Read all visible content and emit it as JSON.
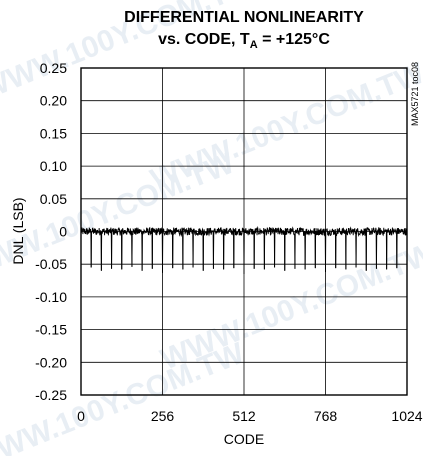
{
  "chart_data": {
    "type": "line",
    "title_line1": "DIFFERENTIAL NONLINEARITY",
    "title_line2_prefix": "vs. CODE, T",
    "title_line2_sub": "A",
    "title_line2_suffix": " = +125°C",
    "xlabel": "CODE",
    "ylabel": "DNL (LSB)",
    "figure_id": "MAX5721 toc08",
    "watermark": "WWW.100Y.COM.TW",
    "xlim": [
      0,
      1024
    ],
    "ylim": [
      -0.25,
      0.25
    ],
    "x_ticks": [
      0,
      256,
      512,
      768,
      1024
    ],
    "y_ticks": [
      0.25,
      0.2,
      0.15,
      0.1,
      0.05,
      0,
      -0.05,
      -0.1,
      -0.15,
      -0.2,
      -0.25
    ],
    "y_tick_labels": [
      "0.25",
      "0.20",
      "0.15",
      "0.10",
      "0.05",
      "0",
      "-0.05",
      "-0.10",
      "-0.15",
      "-0.20",
      "-0.25"
    ],
    "grid": true,
    "series": [
      {
        "color": "#000000",
        "baseline": 0,
        "noise_amplitude": 0.006,
        "spikes": [
          {
            "x": 32,
            "y": -0.055
          },
          {
            "x": 64,
            "y": -0.06
          },
          {
            "x": 96,
            "y": -0.057
          },
          {
            "x": 128,
            "y": -0.058
          },
          {
            "x": 160,
            "y": -0.054
          },
          {
            "x": 192,
            "y": -0.06
          },
          {
            "x": 224,
            "y": -0.057
          },
          {
            "x": 256,
            "y": -0.063
          },
          {
            "x": 288,
            "y": -0.056
          },
          {
            "x": 320,
            "y": -0.058
          },
          {
            "x": 352,
            "y": -0.055
          },
          {
            "x": 384,
            "y": -0.06
          },
          {
            "x": 416,
            "y": -0.057
          },
          {
            "x": 448,
            "y": -0.058
          },
          {
            "x": 480,
            "y": -0.056
          },
          {
            "x": 512,
            "y": -0.065
          },
          {
            "x": 544,
            "y": -0.057
          },
          {
            "x": 576,
            "y": -0.058
          },
          {
            "x": 608,
            "y": -0.055
          },
          {
            "x": 640,
            "y": -0.06
          },
          {
            "x": 672,
            "y": -0.057
          },
          {
            "x": 704,
            "y": -0.058
          },
          {
            "x": 736,
            "y": -0.056
          },
          {
            "x": 768,
            "y": -0.062
          },
          {
            "x": 800,
            "y": -0.056
          },
          {
            "x": 832,
            "y": -0.058
          },
          {
            "x": 864,
            "y": -0.055
          },
          {
            "x": 896,
            "y": -0.06
          },
          {
            "x": 928,
            "y": -0.057
          },
          {
            "x": 960,
            "y": -0.058
          },
          {
            "x": 992,
            "y": -0.056
          }
        ]
      }
    ]
  }
}
